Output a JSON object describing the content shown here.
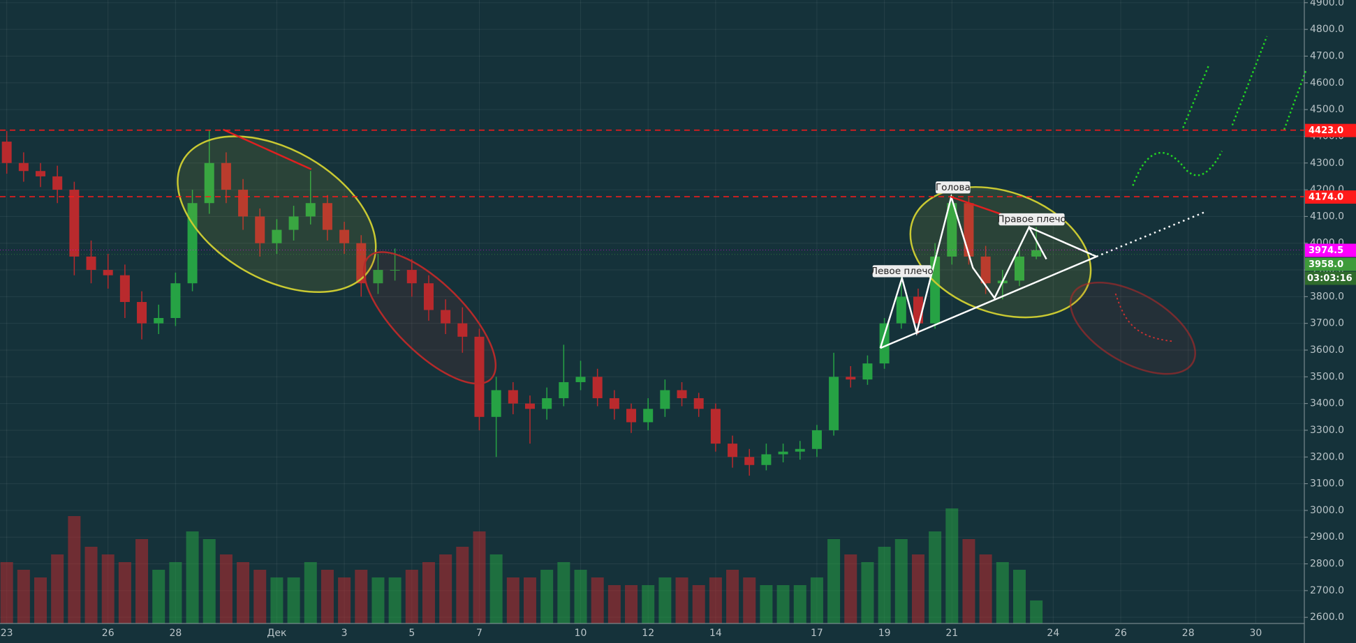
{
  "chart_data": {
    "type": "candlestick",
    "x": [
      0,
      0.5,
      1,
      1.5,
      2,
      2.5,
      3,
      3.5,
      4,
      4.5,
      5,
      5.5,
      6,
      6.5,
      7,
      7.5,
      8,
      8.5,
      9,
      9.5,
      10,
      10.5,
      11,
      11.5,
      12,
      12.5,
      13,
      13.5,
      14,
      14.5,
      15,
      15.5,
      16,
      16.5,
      17,
      17.5,
      18,
      18.5,
      19,
      19.5,
      20,
      20.5,
      21,
      21.5,
      22,
      22.5,
      23,
      23.5,
      24,
      24.5,
      25,
      25.5,
      26,
      26.5,
      27,
      27.5,
      28,
      28.5,
      29,
      29.5,
      30,
      30.5
    ],
    "open": [
      4380,
      4300,
      4270,
      4250,
      4200,
      3950,
      3900,
      3880,
      3780,
      3700,
      3720,
      3850,
      4150,
      4300,
      4200,
      4100,
      4000,
      4050,
      4100,
      4150,
      4050,
      4000,
      3850,
      3900,
      3900,
      3850,
      3750,
      3700,
      3650,
      3350,
      3450,
      3400,
      3380,
      3420,
      3480,
      3500,
      3420,
      3380,
      3330,
      3380,
      3450,
      3420,
      3380,
      3250,
      3200,
      3170,
      3210,
      3220,
      3230,
      3300,
      3500,
      3490,
      3550,
      3700,
      3800,
      3700,
      3950,
      4150,
      3950,
      3850,
      3860,
      3950
    ],
    "high": [
      4420,
      4340,
      4300,
      4290,
      4230,
      4010,
      3960,
      3920,
      3820,
      3770,
      3890,
      4200,
      4423,
      4340,
      4240,
      4130,
      4090,
      4140,
      4270,
      4180,
      4080,
      4030,
      3960,
      3980,
      3940,
      3880,
      3790,
      3760,
      3680,
      3500,
      3480,
      3430,
      3460,
      3620,
      3560,
      3530,
      3450,
      3400,
      3420,
      3490,
      3480,
      3440,
      3400,
      3280,
      3230,
      3250,
      3250,
      3260,
      3320,
      3590,
      3540,
      3580,
      3720,
      3880,
      3830,
      4000,
      4180,
      4170,
      3990,
      3900,
      3990,
      4060
    ],
    "low": [
      4260,
      4230,
      4210,
      4150,
      3880,
      3850,
      3830,
      3720,
      3640,
      3660,
      3690,
      3820,
      4110,
      4150,
      4050,
      3950,
      3960,
      4010,
      4070,
      4010,
      3960,
      3800,
      3810,
      3860,
      3800,
      3710,
      3660,
      3590,
      3300,
      3200,
      3360,
      3250,
      3340,
      3390,
      3450,
      3390,
      3340,
      3290,
      3300,
      3350,
      3390,
      3350,
      3220,
      3160,
      3130,
      3150,
      3180,
      3190,
      3200,
      3280,
      3460,
      3470,
      3530,
      3680,
      3660,
      3680,
      3920,
      3920,
      3810,
      3790,
      3840,
      3940
    ],
    "close": [
      4300,
      4270,
      4250,
      4200,
      3950,
      3900,
      3880,
      3780,
      3700,
      3720,
      3850,
      4150,
      4300,
      4200,
      4100,
      4000,
      4050,
      4100,
      4150,
      4050,
      4000,
      3850,
      3900,
      3900,
      3850,
      3750,
      3700,
      3650,
      3350,
      3450,
      3400,
      3380,
      3420,
      3480,
      3500,
      3420,
      3380,
      3330,
      3380,
      3450,
      3420,
      3380,
      3250,
      3200,
      3170,
      3210,
      3220,
      3230,
      3300,
      3500,
      3490,
      3550,
      3700,
      3800,
      3700,
      3950,
      4150,
      3950,
      3850,
      3860,
      3950,
      3974.5
    ],
    "volume": [
      40,
      35,
      30,
      45,
      70,
      50,
      45,
      40,
      55,
      35,
      40,
      60,
      55,
      45,
      40,
      35,
      30,
      30,
      40,
      35,
      30,
      35,
      30,
      30,
      35,
      40,
      45,
      50,
      60,
      45,
      30,
      30,
      35,
      40,
      35,
      30,
      25,
      25,
      25,
      30,
      30,
      25,
      30,
      35,
      30,
      25,
      25,
      25,
      30,
      55,
      45,
      40,
      50,
      55,
      45,
      60,
      75,
      55,
      45,
      40,
      35,
      15
    ],
    "up_color": "#26a244",
    "down_color": "#b92a2d",
    "xlim": [
      -0.2,
      38.44
    ],
    "xticks": [
      {
        "value": 0,
        "label": "23"
      },
      {
        "value": 3,
        "label": "26"
      },
      {
        "value": 5,
        "label": "28"
      },
      {
        "value": 8,
        "label": "Дек"
      },
      {
        "value": 10,
        "label": "3"
      },
      {
        "value": 12,
        "label": "5"
      },
      {
        "value": 14,
        "label": "7"
      },
      {
        "value": 17,
        "label": "10"
      },
      {
        "value": 19,
        "label": "12"
      },
      {
        "value": 21,
        "label": "14"
      },
      {
        "value": 24,
        "label": "17"
      },
      {
        "value": 26,
        "label": "19"
      },
      {
        "value": 28,
        "label": "21"
      },
      {
        "value": 31,
        "label": "24"
      },
      {
        "value": 33,
        "label": "26"
      },
      {
        "value": 35,
        "label": "28"
      },
      {
        "value": 37,
        "label": "30"
      }
    ],
    "ylim": [
      2577,
      4910
    ],
    "yticks": [
      {
        "value": 2600,
        "label": "2600.0"
      },
      {
        "value": 2700,
        "label": "2700.0"
      },
      {
        "value": 2800,
        "label": "2800.0"
      },
      {
        "value": 2900,
        "label": "2900.0"
      },
      {
        "value": 3000,
        "label": "3000.0"
      },
      {
        "value": 3100,
        "label": "3100.0"
      },
      {
        "value": 3200,
        "label": "3200.0"
      },
      {
        "value": 3300,
        "label": "3300.0"
      },
      {
        "value": 3400,
        "label": "3400.0"
      },
      {
        "value": 3500,
        "label": "3500.0"
      },
      {
        "value": 3600,
        "label": "3600.0"
      },
      {
        "value": 3700,
        "label": "3700.0"
      },
      {
        "value": 3800,
        "label": "3800.0"
      },
      {
        "value": 3900,
        "label": "3900.0"
      },
      {
        "value": 4000,
        "label": "4000.0"
      },
      {
        "value": 4100,
        "label": "4100.0"
      },
      {
        "value": 4200,
        "label": "4200.0"
      },
      {
        "value": 4300,
        "label": "4300.0"
      },
      {
        "value": 4400,
        "label": "4400.0"
      },
      {
        "value": 4500,
        "label": "4500.0"
      },
      {
        "value": 4600,
        "label": "4600.0"
      },
      {
        "value": 4700,
        "label": "4700.0"
      },
      {
        "value": 4800,
        "label": "4800.0"
      },
      {
        "value": 4900,
        "label": "4900.0"
      }
    ],
    "grid": true,
    "levels": [
      {
        "value": 4423,
        "label": "4423.0",
        "color": "#ff1a1a",
        "dashed": true
      },
      {
        "value": 4174,
        "label": "4174.0",
        "color": "#ff1a1a",
        "dashed": true
      },
      {
        "value": 3974.5,
        "label": "3974.5",
        "color": "#ff00ff",
        "dashed": false
      },
      {
        "value": 3958,
        "label": "3958.0",
        "color": "#3f9b3a",
        "dashed": false
      }
    ],
    "countdown": "03:03:16",
    "annotations": [
      "Голова",
      "Левое плечо",
      "Правое плечо"
    ]
  }
}
